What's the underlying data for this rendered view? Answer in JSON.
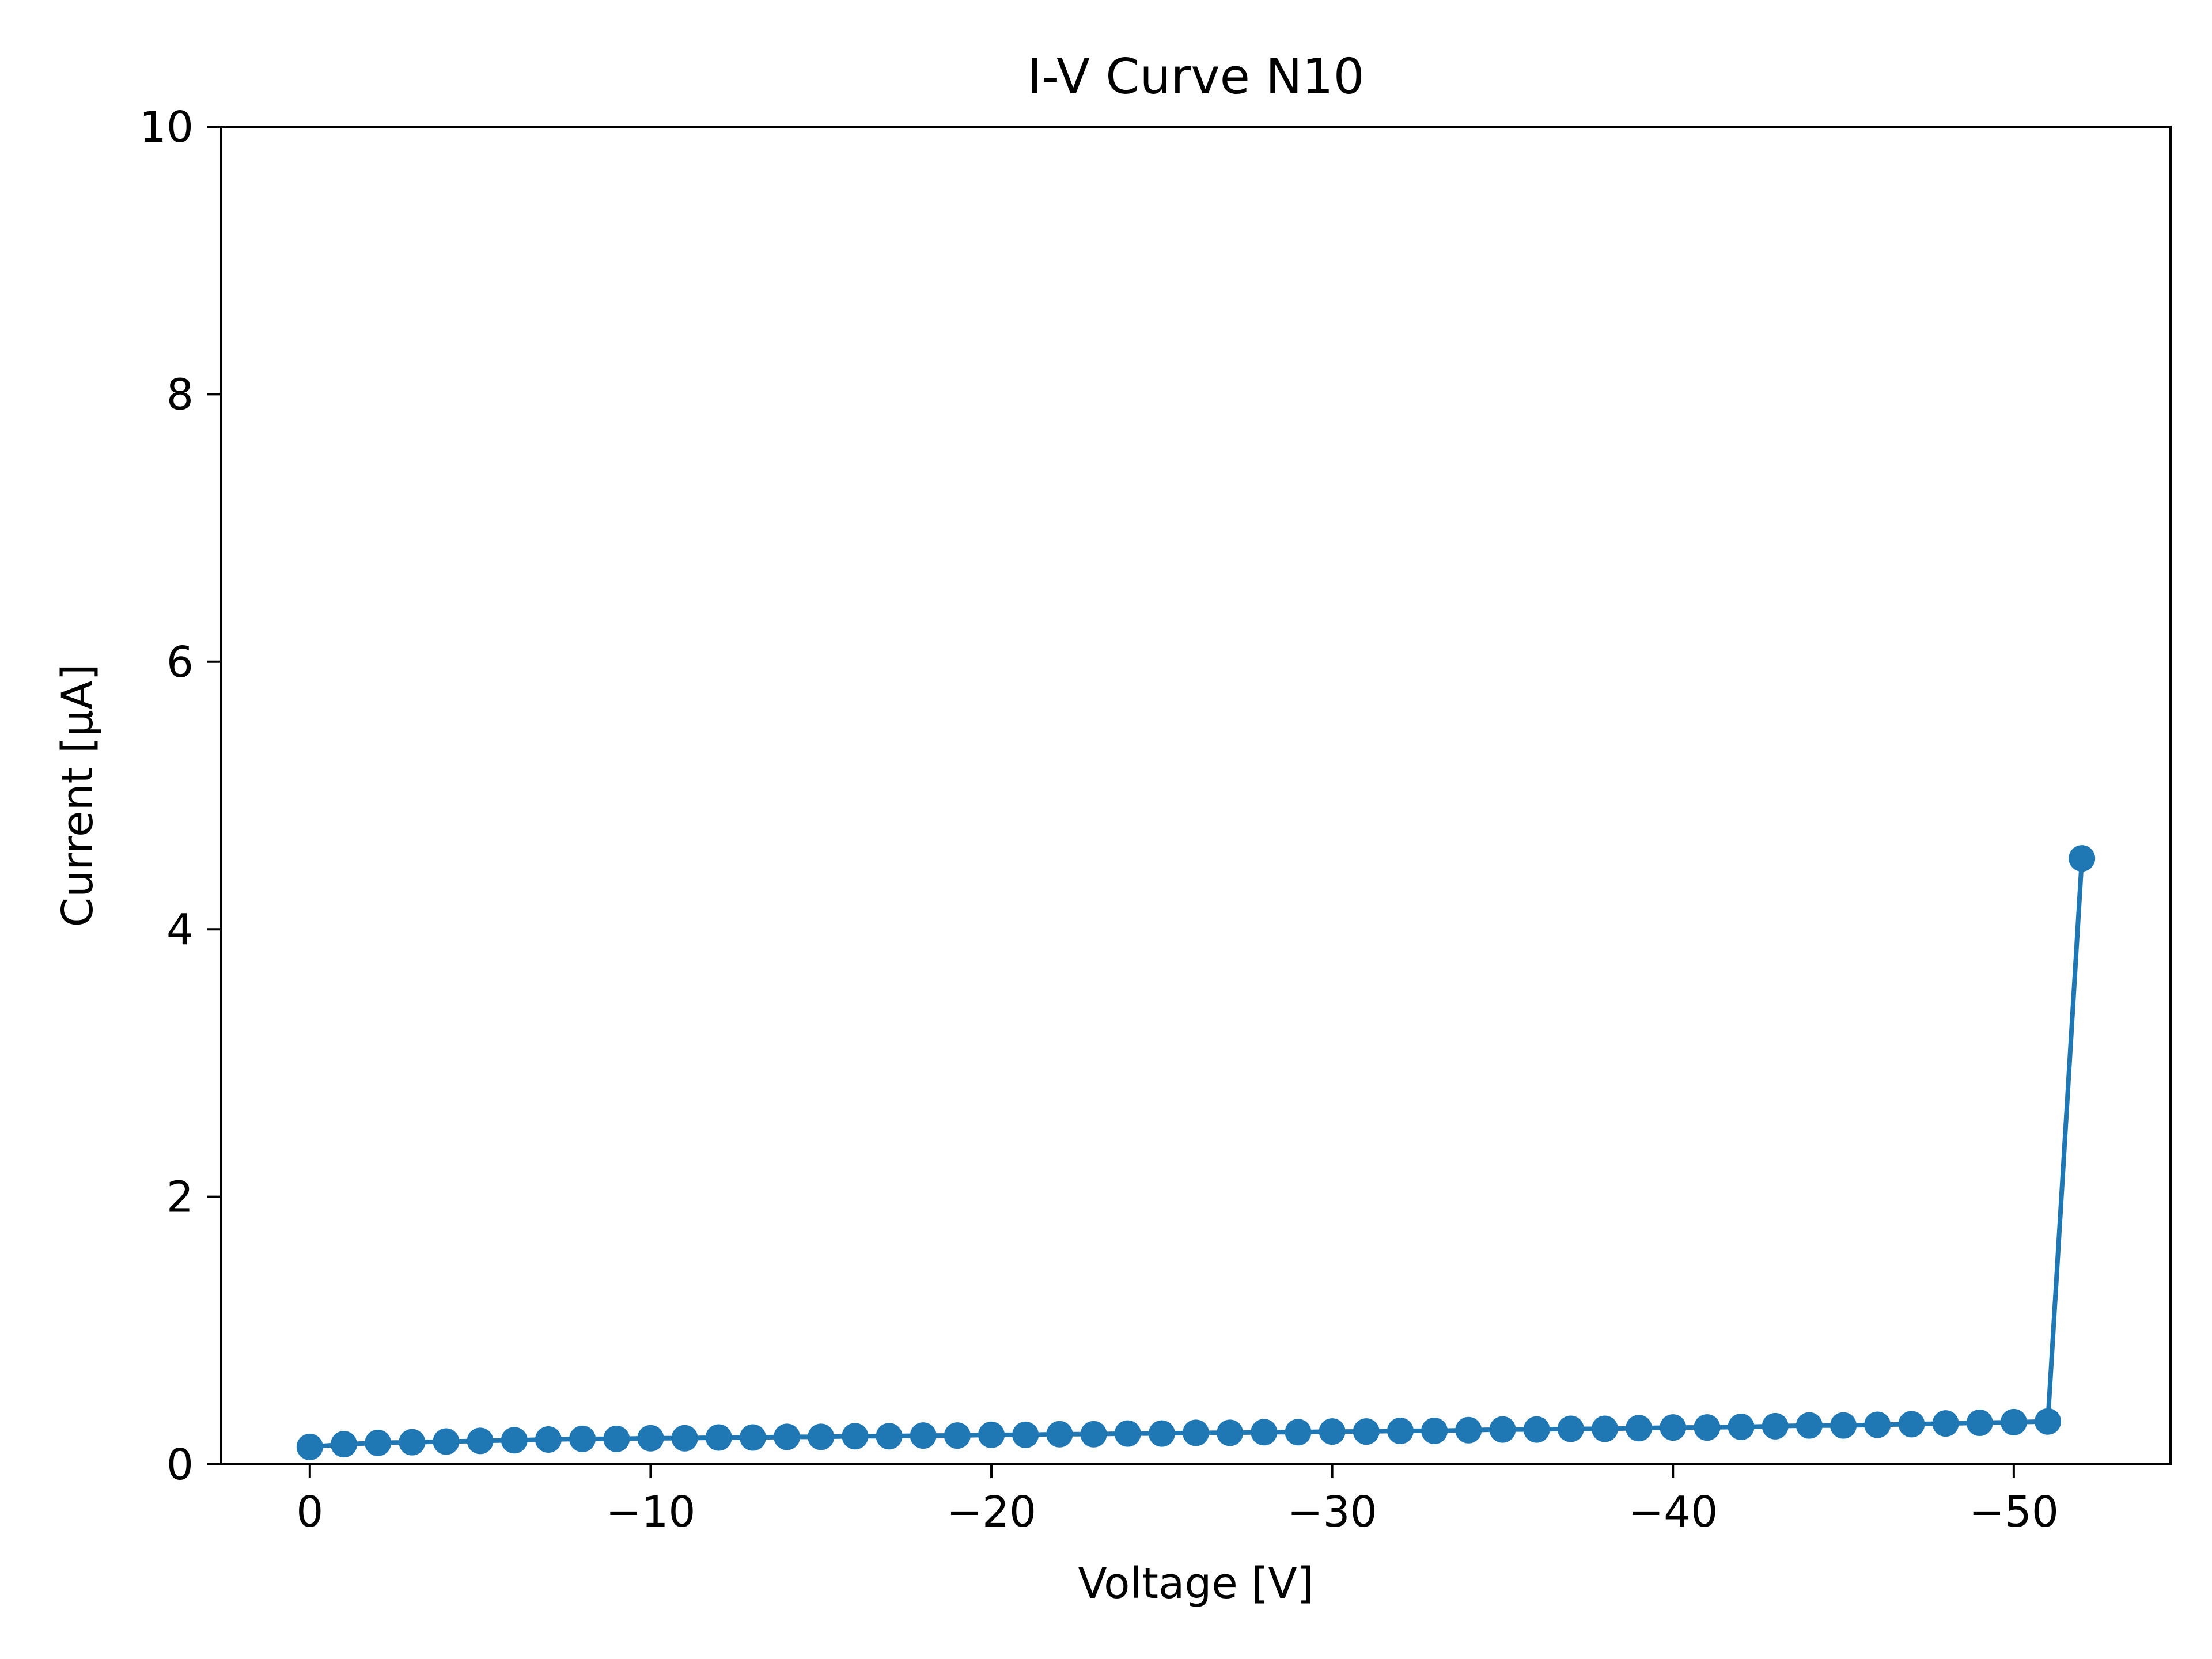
{
  "chart_data": {
    "type": "line",
    "title": "I-V Curve N10",
    "xlabel": "Voltage [V]",
    "ylabel": "Current [μA]",
    "xlim": [
      2.6,
      -54.6
    ],
    "ylim": [
      0,
      10
    ],
    "x_ticks": [
      0,
      -10,
      -20,
      -30,
      -40,
      -50
    ],
    "x_tick_labels": [
      "0",
      "−10",
      "−20",
      "−30",
      "−40",
      "−50"
    ],
    "y_ticks": [
      0,
      2,
      4,
      6,
      8,
      10
    ],
    "y_tick_labels": [
      "0",
      "2",
      "4",
      "6",
      "8",
      "10"
    ],
    "grid": false,
    "series": [
      {
        "color": "#1f77b4",
        "marker": "circle",
        "x": [
          0,
          -1,
          -2,
          -3,
          -4,
          -5,
          -6,
          -7,
          -8,
          -9,
          -10,
          -11,
          -12,
          -13,
          -14,
          -15,
          -16,
          -17,
          -18,
          -19,
          -20,
          -21,
          -22,
          -23,
          -24,
          -25,
          -26,
          -27,
          -28,
          -29,
          -30,
          -31,
          -32,
          -33,
          -34,
          -35,
          -36,
          -37,
          -38,
          -39,
          -40,
          -41,
          -42,
          -43,
          -44,
          -45,
          -46,
          -47,
          -48,
          -49,
          -50,
          -51,
          -52
        ],
        "y": [
          0.13,
          0.15,
          0.16,
          0.165,
          0.17,
          0.175,
          0.18,
          0.185,
          0.19,
          0.19,
          0.195,
          0.195,
          0.2,
          0.2,
          0.205,
          0.205,
          0.21,
          0.21,
          0.215,
          0.215,
          0.22,
          0.22,
          0.225,
          0.225,
          0.23,
          0.23,
          0.235,
          0.235,
          0.24,
          0.24,
          0.245,
          0.245,
          0.25,
          0.25,
          0.255,
          0.26,
          0.26,
          0.265,
          0.265,
          0.27,
          0.275,
          0.275,
          0.28,
          0.285,
          0.29,
          0.29,
          0.295,
          0.3,
          0.305,
          0.31,
          0.315,
          0.32,
          4.53
        ]
      }
    ]
  }
}
